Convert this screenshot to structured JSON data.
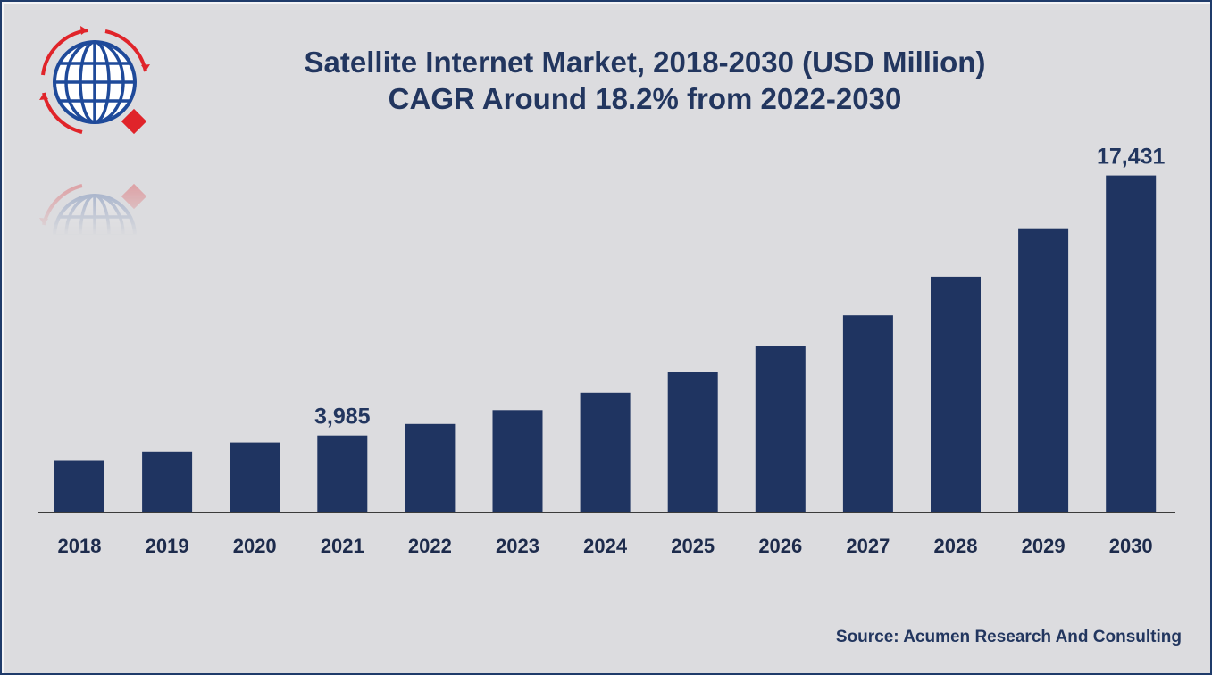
{
  "chart_data": {
    "type": "bar",
    "title": "Satellite Internet Market, 2018-2030 (USD Million)",
    "subtitle": "CAGR Around 18.2% from 2022-2030",
    "categories": [
      "2018",
      "2019",
      "2020",
      "2021",
      "2022",
      "2023",
      "2024",
      "2025",
      "2026",
      "2027",
      "2028",
      "2029",
      "2030"
    ],
    "values": [
      2700,
      3150,
      3620,
      3985,
      4580,
      5300,
      6200,
      7250,
      8600,
      10200,
      12200,
      14700,
      17431
    ],
    "data_labels": [
      {
        "category": "2021",
        "text": "3,985"
      },
      {
        "category": "2030",
        "text": "17,431"
      }
    ],
    "xlabel": "",
    "ylabel": "",
    "ylim": [
      0,
      20000
    ],
    "grid": false,
    "legend": "none",
    "bar_color": "#1f3461"
  },
  "source": "Source: Acumen Research And Consulting",
  "logo": {
    "icon": "globe-with-red-arrows-icon",
    "colors": {
      "globe": "#1f4a9a",
      "arrows": "#e0242a"
    }
  }
}
